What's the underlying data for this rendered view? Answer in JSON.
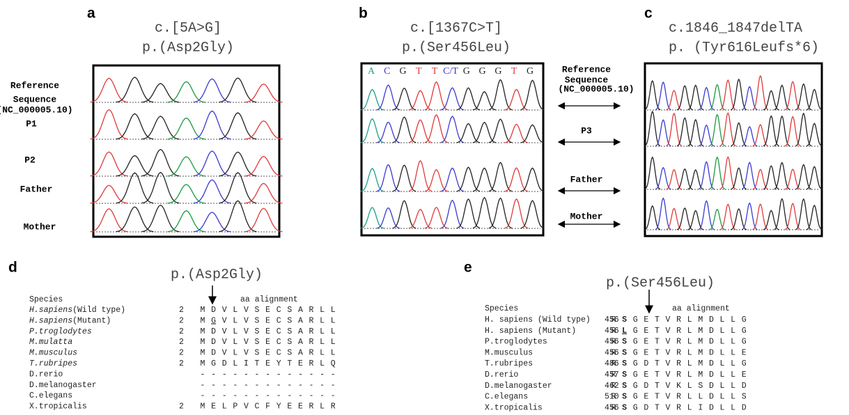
{
  "a": {
    "label": "a",
    "title_lines": [
      "c.[5A>G]",
      "p.(Asp2Gly)"
    ],
    "row_labels": [
      [
        "Reference",
        "Sequence",
        "(NC_000005.10)"
      ],
      [
        "P1"
      ],
      [
        "P2"
      ],
      [
        "Father"
      ],
      [
        "Mother"
      ]
    ]
  },
  "b": {
    "label": "b",
    "title_lines": [
      "c.[1367C>T]",
      "p.(Ser456Leu)"
    ],
    "bases": [
      "A",
      "C",
      "G",
      "T",
      "T",
      "C/T",
      "G",
      "G",
      "G",
      "T",
      "G"
    ]
  },
  "middle": {
    "row_labels": [
      [
        "Reference",
        "Sequence",
        "(NC_000005.10)"
      ],
      [
        "P3"
      ],
      [
        "Father"
      ],
      [
        "Mother"
      ]
    ]
  },
  "c": {
    "label": "c",
    "title_lines": [
      "c.1846_1847delTA",
      "p. (Tyr616Leufs*6)"
    ]
  },
  "d": {
    "label": "d",
    "title": "p.(Asp2Gly)",
    "species_header": "Species",
    "alignment_header": "aa alignment",
    "rows": [
      {
        "species": "H.sapiens",
        "note": "(Wild type)",
        "start": 2,
        "residues": [
          "M",
          "D",
          "V",
          "L",
          "V",
          "S",
          "E",
          "C",
          "S",
          "A",
          "R",
          "L",
          "L"
        ]
      },
      {
        "species": "H.sapiens",
        "note": "(Mutant)",
        "start": 2,
        "residues": [
          "M",
          "G",
          "V",
          "L",
          "V",
          "S",
          "E",
          "C",
          "S",
          "A",
          "R",
          "L",
          "L"
        ]
      },
      {
        "species": "P.troglodytes",
        "start": 2,
        "residues": [
          "M",
          "D",
          "V",
          "L",
          "V",
          "S",
          "E",
          "C",
          "S",
          "A",
          "R",
          "L",
          "L"
        ]
      },
      {
        "species": "M.mulatta",
        "start": 2,
        "residues": [
          "M",
          "D",
          "V",
          "L",
          "V",
          "S",
          "E",
          "C",
          "S",
          "A",
          "R",
          "L",
          "L"
        ]
      },
      {
        "species": "M.musculus",
        "start": 2,
        "residues": [
          "M",
          "D",
          "V",
          "L",
          "V",
          "S",
          "E",
          "C",
          "S",
          "A",
          "R",
          "L",
          "L"
        ]
      },
      {
        "species": "T.rubripes",
        "start": 2,
        "residues": [
          "M",
          "G",
          "D",
          "L",
          "I",
          "T",
          "E",
          "Y",
          "T",
          "E",
          "R",
          "L",
          "Q"
        ]
      },
      {
        "species": "D.rerio",
        "residues": [
          "-",
          "-",
          "-",
          "-",
          "-",
          "-",
          "-",
          "-",
          "-",
          "-",
          "-",
          "-",
          "-"
        ]
      },
      {
        "species": "D.melanogaster",
        "residues": [
          "-",
          "-",
          "-",
          "-",
          "-",
          "-",
          "-",
          "-",
          "-",
          "-",
          "-",
          "-",
          "-"
        ]
      },
      {
        "species": "C.elegans",
        "residues": [
          "-",
          "-",
          "-",
          "-",
          "-",
          "-",
          "-",
          "-",
          "-",
          "-",
          "-",
          "-",
          "-"
        ]
      },
      {
        "species": "X.tropicalis",
        "start": 2,
        "residues": [
          "M",
          "E",
          "L",
          "P",
          "V",
          "C",
          "F",
          "Y",
          "E",
          "E",
          "R",
          "L",
          "R"
        ]
      }
    ]
  },
  "e": {
    "label": "e",
    "title": "p.(Ser456Leu)",
    "species_header": "Species",
    "alignment_header": "aa alignment",
    "rows": [
      {
        "species": "H. sapiens",
        "note": "(Wild type)",
        "start": 456,
        "residues": [
          "R",
          "S",
          "G",
          "E",
          "T",
          "V",
          "R",
          "L",
          "M",
          "D",
          "L",
          "L",
          "G"
        ]
      },
      {
        "species": "H. sapiens",
        "note": "(Mutant)",
        "start": 456,
        "residues": [
          "R",
          "L",
          "G",
          "E",
          "T",
          "V",
          "R",
          "L",
          "M",
          "D",
          "L",
          "L",
          "G"
        ]
      },
      {
        "species": "P.troglodytes",
        "start": 456,
        "residues": [
          "R",
          "S",
          "G",
          "E",
          "T",
          "V",
          "R",
          "L",
          "M",
          "D",
          "L",
          "L",
          "G"
        ]
      },
      {
        "species": "M.musculus",
        "start": 456,
        "residues": [
          "R",
          "S",
          "G",
          "E",
          "T",
          "V",
          "R",
          "L",
          "M",
          "D",
          "L",
          "L",
          "E"
        ]
      },
      {
        "species": "T.rubripes",
        "start": 486,
        "residues": [
          "R",
          "S",
          "G",
          "D",
          "T",
          "V",
          "R",
          "L",
          "M",
          "D",
          "L",
          "L",
          "G"
        ]
      },
      {
        "species": "D.rerio",
        "start": 457,
        "residues": [
          "R",
          "S",
          "G",
          "E",
          "T",
          "V",
          "R",
          "L",
          "M",
          "D",
          "L",
          "L",
          "E"
        ]
      },
      {
        "species": "D.melanogaster",
        "start": 462,
        "residues": [
          "R",
          "S",
          "G",
          "D",
          "T",
          "V",
          "K",
          "L",
          "S",
          "D",
          "L",
          "L",
          "D"
        ]
      },
      {
        "species": "C.elegans",
        "start": 510,
        "residues": [
          "R",
          "S",
          "G",
          "E",
          "T",
          "V",
          "R",
          "L",
          "L",
          "D",
          "L",
          "L",
          "S"
        ]
      },
      {
        "species": "X.tropicalis",
        "start": 456,
        "residues": [
          "R",
          "S",
          "G",
          "D",
          "T",
          "V",
          "R",
          "L",
          "I",
          "D",
          "L",
          "L",
          "D"
        ]
      }
    ]
  }
}
